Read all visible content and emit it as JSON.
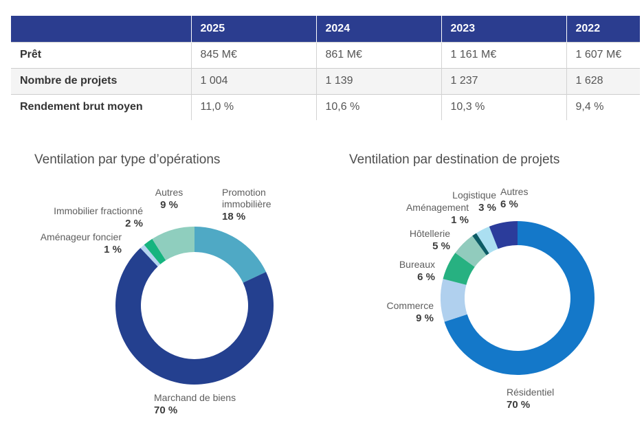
{
  "chart_data": [
    {
      "type": "table",
      "columns": [
        "2025",
        "2024",
        "2023",
        "2022"
      ],
      "rows": [
        {
          "label": "Prêt",
          "values": [
            "845 M€",
            "861 M€",
            "1 161 M€",
            "1 607 M€"
          ]
        },
        {
          "label": "Nombre de projets",
          "values": [
            "1 004",
            "1 139",
            "1 237",
            "1 628"
          ]
        },
        {
          "label": "Rendement brut moyen",
          "values": [
            "11,0 %",
            "10,6 %",
            "10,3 %",
            "9,4 %"
          ]
        }
      ],
      "header_bg": "#2B3D8F",
      "header_text_color": "#ffffff",
      "alt_row_bg": "#f4f4f4"
    },
    {
      "type": "pie",
      "donut": true,
      "start_angle_deg": 0,
      "direction": "clockwise",
      "title": "Ventilation par type d’opérations",
      "categories": [
        "Promotion immobilière",
        "Marchand de biens",
        "Aménageur foncier",
        "Immobilier fractionné",
        "Autres"
      ],
      "values": [
        18,
        70,
        1,
        2,
        9
      ],
      "value_labels": [
        "18 %",
        "70 %",
        "1 %",
        "2 %",
        "9 %"
      ],
      "colors": [
        "#4FA9C5",
        "#24408F",
        "#B5D4F0",
        "#16B47F",
        "#8FCEBE"
      ]
    },
    {
      "type": "pie",
      "donut": true,
      "start_angle_deg": 0,
      "direction": "clockwise",
      "title": "Ventilation par destination de projets",
      "categories": [
        "Résidentiel",
        "Commerce",
        "Bureaux",
        "Hôtellerie",
        "Aménagement",
        "Logistique",
        "Autres"
      ],
      "values": [
        70,
        9,
        6,
        5,
        1,
        3,
        6
      ],
      "value_labels": [
        "70 %",
        "9 %",
        "6 %",
        "5 %",
        "1 %",
        "3 %",
        "6 %"
      ],
      "colors": [
        "#1478C9",
        "#B0D0EE",
        "#27B181",
        "#91CBBD",
        "#0D5C66",
        "#ABDFF1",
        "#2B3C9B"
      ]
    }
  ]
}
